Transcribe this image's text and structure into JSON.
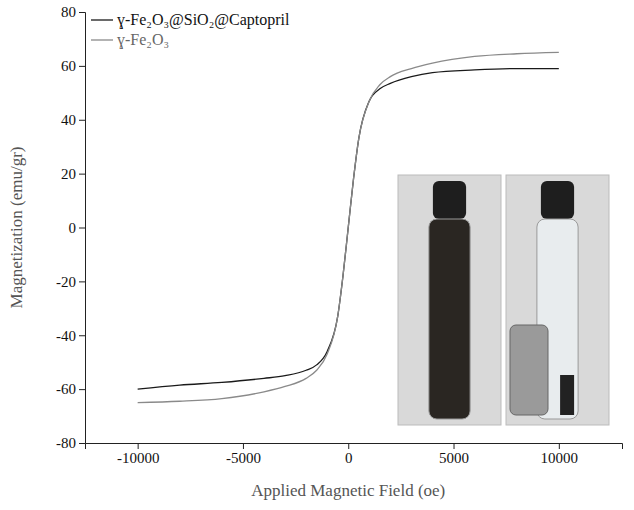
{
  "chart_data": {
    "type": "line",
    "x_label": "Applied Magnetic Field (oe)",
    "y_label": "Magnetization (emu/gr)",
    "x": [
      -10000,
      -8000,
      -6000,
      -4000,
      -3000,
      -2000,
      -1500,
      -1000,
      -500,
      -250,
      0,
      250,
      500,
      1000,
      1500,
      2000,
      3000,
      4000,
      6000,
      8000,
      10000
    ],
    "series": [
      {
        "name": "ɣ-Fe₂O₃@SiO₂@Captopril",
        "color": "#1a1a1a",
        "line_style": "solid",
        "values": [
          -60,
          -58.5,
          -57.5,
          -56,
          -55,
          -53,
          -51,
          -46,
          -33,
          -18,
          0,
          18,
          33,
          47,
          51.5,
          53.5,
          56,
          57.5,
          58.5,
          59,
          59
        ]
      },
      {
        "name": "ɣ-Fe₂O₃",
        "color": "#8a8a8a",
        "line_style": "solid",
        "values": [
          -65,
          -64.5,
          -63.5,
          -61,
          -59,
          -56,
          -53,
          -47,
          -33,
          -18,
          0,
          18,
          33,
          47,
          53,
          56,
          59,
          61,
          63.5,
          64.5,
          65
        ]
      }
    ],
    "xlim": [
      -12500,
      13000
    ],
    "ylim": [
      -80,
      80
    ],
    "xticks": [
      -10000,
      -5000,
      0,
      5000,
      10000
    ],
    "yticks": [
      -80,
      -60,
      -40,
      -20,
      0,
      20,
      40,
      60,
      80
    ],
    "grid": false,
    "legend": "upper left"
  }
}
